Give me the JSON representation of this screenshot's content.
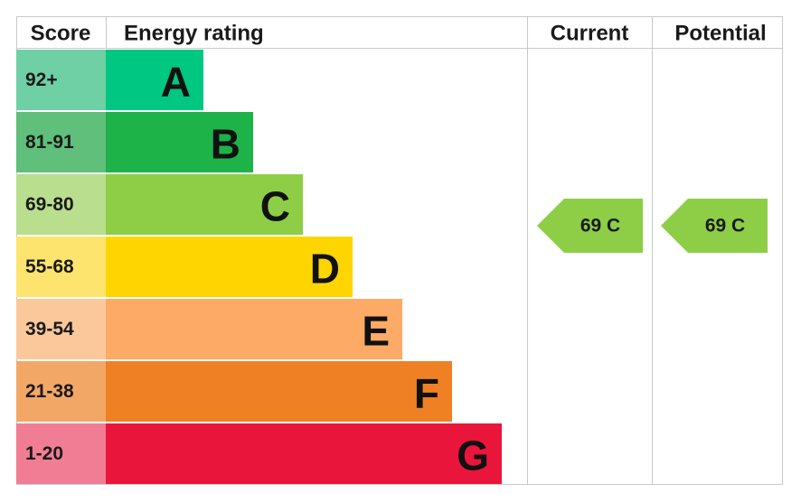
{
  "header": {
    "score": "Score",
    "energy_rating": "Energy rating",
    "current": "Current",
    "potential": "Potential"
  },
  "rows": [
    {
      "score": "92+",
      "rating": "A"
    },
    {
      "score": "81-91",
      "rating": "B"
    },
    {
      "score": "69-80",
      "rating": "C"
    },
    {
      "score": "55-68",
      "rating": "D"
    },
    {
      "score": "39-54",
      "rating": "E"
    },
    {
      "score": "21-38",
      "rating": "F"
    },
    {
      "score": "1-20",
      "rating": "G"
    }
  ],
  "current": "69 C",
  "potential": "69 C"
}
